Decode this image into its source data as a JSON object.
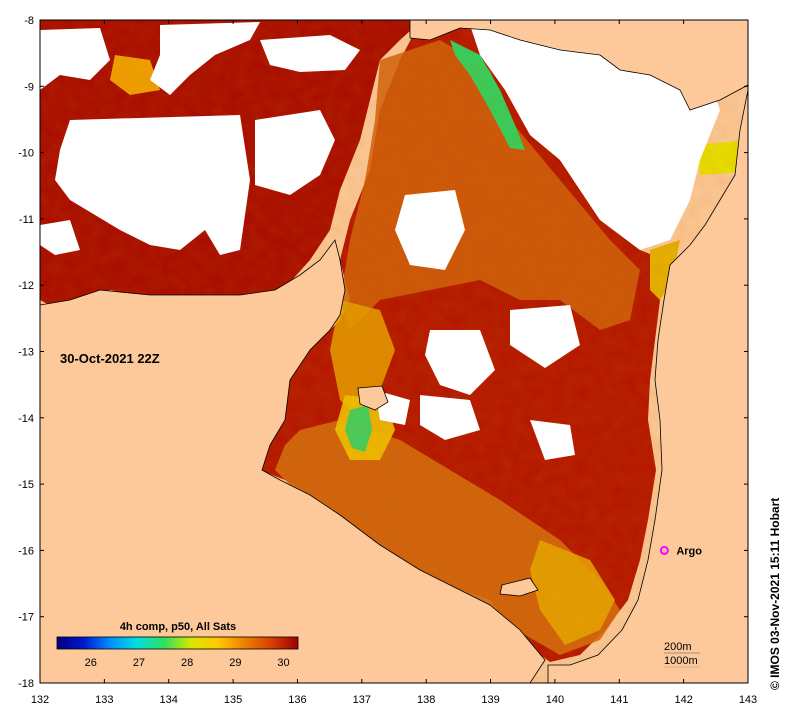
{
  "timestamp_label": "30-Oct-2021 22Z",
  "colorbar": {
    "title": "4h comp, p50, All Sats",
    "ticks": [
      "26",
      "27",
      "28",
      "29",
      "30"
    ],
    "range": [
      25.3,
      30.3
    ],
    "gradient": [
      "#00007f",
      "#0018d0",
      "#0090ff",
      "#00e0e0",
      "#30e060",
      "#d8e800",
      "#ffc800",
      "#f08000",
      "#d84000",
      "#9e0000"
    ]
  },
  "axes": {
    "lon_ticks": [
      "132",
      "133",
      "134",
      "135",
      "136",
      "137",
      "138",
      "139",
      "140",
      "141",
      "142",
      "143"
    ],
    "lat_ticks": [
      "-8",
      "-9",
      "-10",
      "-11",
      "-12",
      "-13",
      "-14",
      "-15",
      "-16",
      "-17",
      "-18"
    ]
  },
  "argo": {
    "label": "Argo",
    "lon": 141.7,
    "lat": -16.0,
    "color": "#ff00ff"
  },
  "isobaths": [
    "200m",
    "1000m"
  ],
  "credit": "© IMOS 03-Nov-2021 15:11 Hobart",
  "colors": {
    "land": "#fdc99b",
    "no_data": "#ffffff",
    "sst_hot": "#b01000",
    "sst_warm": "#d86a10",
    "sst_mid": "#f2b400",
    "sst_cool": "#40d060"
  }
}
